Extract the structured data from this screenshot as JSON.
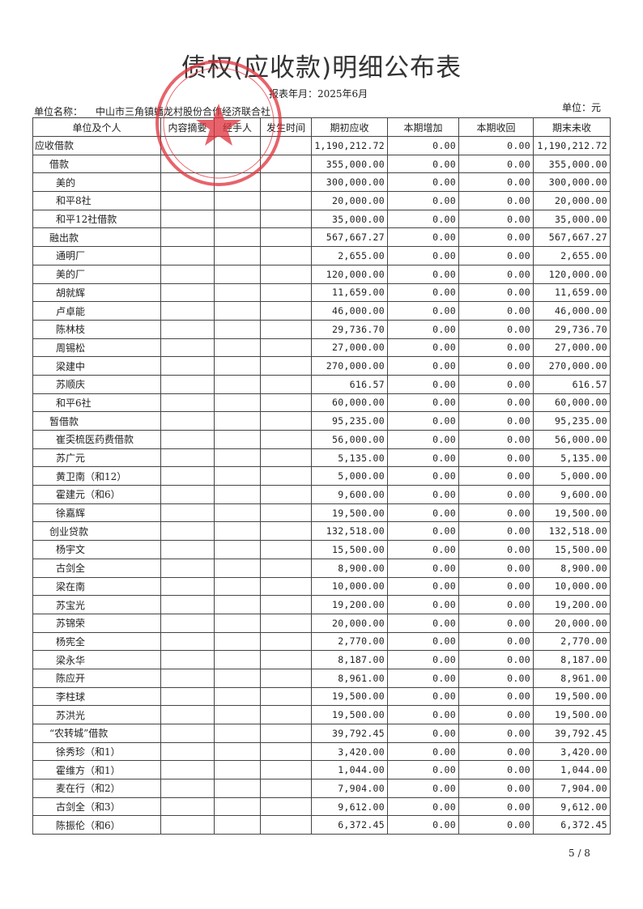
{
  "title": "债权(应收款)明细公布表",
  "period": "报表年月：2025年6月",
  "unit_label": "单位名称：",
  "unit_name": "中山市三角镇蟠龙村股份合作经济联合社",
  "currency": "单位：元",
  "stamp_text": "中山市三角镇蟠龙村股份合作经济联合社",
  "stamp_color": "#e0303a",
  "headers": [
    "单位及个人",
    "内容摘要",
    "经手人",
    "发生时间",
    "期初应收",
    "本期增加",
    "本期收回",
    "期末未收"
  ],
  "rows": [
    {
      "name": "应收借款",
      "level": 0,
      "begin": "1,190,212.72",
      "add": "0.00",
      "recv": "0.00",
      "end": "1,190,212.72"
    },
    {
      "name": "借款",
      "level": 1,
      "begin": "355,000.00",
      "add": "0.00",
      "recv": "0.00",
      "end": "355,000.00"
    },
    {
      "name": "美的",
      "level": 2,
      "begin": "300,000.00",
      "add": "0.00",
      "recv": "0.00",
      "end": "300,000.00"
    },
    {
      "name": "和平8社",
      "level": 2,
      "begin": "20,000.00",
      "add": "0.00",
      "recv": "0.00",
      "end": "20,000.00"
    },
    {
      "name": "和平12社借款",
      "level": 2,
      "begin": "35,000.00",
      "add": "0.00",
      "recv": "0.00",
      "end": "35,000.00"
    },
    {
      "name": "融出款",
      "level": 1,
      "begin": "567,667.27",
      "add": "0.00",
      "recv": "0.00",
      "end": "567,667.27"
    },
    {
      "name": "通明厂",
      "level": 2,
      "begin": "2,655.00",
      "add": "0.00",
      "recv": "0.00",
      "end": "2,655.00"
    },
    {
      "name": "美的厂",
      "level": 2,
      "begin": "120,000.00",
      "add": "0.00",
      "recv": "0.00",
      "end": "120,000.00"
    },
    {
      "name": "胡就辉",
      "level": 2,
      "begin": "11,659.00",
      "add": "0.00",
      "recv": "0.00",
      "end": "11,659.00"
    },
    {
      "name": "卢卓能",
      "level": 2,
      "begin": "46,000.00",
      "add": "0.00",
      "recv": "0.00",
      "end": "46,000.00"
    },
    {
      "name": "陈林枝",
      "level": 2,
      "begin": "29,736.70",
      "add": "0.00",
      "recv": "0.00",
      "end": "29,736.70"
    },
    {
      "name": "周锡松",
      "level": 2,
      "begin": "27,000.00",
      "add": "0.00",
      "recv": "0.00",
      "end": "27,000.00"
    },
    {
      "name": "梁建中",
      "level": 2,
      "begin": "270,000.00",
      "add": "0.00",
      "recv": "0.00",
      "end": "270,000.00"
    },
    {
      "name": "苏顺庆",
      "level": 2,
      "begin": "616.57",
      "add": "0.00",
      "recv": "0.00",
      "end": "616.57"
    },
    {
      "name": "和平6社",
      "level": 2,
      "begin": "60,000.00",
      "add": "0.00",
      "recv": "0.00",
      "end": "60,000.00"
    },
    {
      "name": "暂借款",
      "level": 1,
      "begin": "95,235.00",
      "add": "0.00",
      "recv": "0.00",
      "end": "95,235.00"
    },
    {
      "name": "崔奀梳医药费借款",
      "level": 2,
      "begin": "56,000.00",
      "add": "0.00",
      "recv": "0.00",
      "end": "56,000.00"
    },
    {
      "name": "苏广元",
      "level": 2,
      "begin": "5,135.00",
      "add": "0.00",
      "recv": "0.00",
      "end": "5,135.00"
    },
    {
      "name": "黄卫南（和12）",
      "level": 2,
      "begin": "5,000.00",
      "add": "0.00",
      "recv": "0.00",
      "end": "5,000.00"
    },
    {
      "name": "霍建元（和6）",
      "level": 2,
      "begin": "9,600.00",
      "add": "0.00",
      "recv": "0.00",
      "end": "9,600.00"
    },
    {
      "name": "徐嘉辉",
      "level": 2,
      "begin": "19,500.00",
      "add": "0.00",
      "recv": "0.00",
      "end": "19,500.00"
    },
    {
      "name": "创业贷款",
      "level": 1,
      "begin": "132,518.00",
      "add": "0.00",
      "recv": "0.00",
      "end": "132,518.00"
    },
    {
      "name": "杨宇文",
      "level": 2,
      "begin": "15,500.00",
      "add": "0.00",
      "recv": "0.00",
      "end": "15,500.00"
    },
    {
      "name": "古剑全",
      "level": 2,
      "begin": "8,900.00",
      "add": "0.00",
      "recv": "0.00",
      "end": "8,900.00"
    },
    {
      "name": "梁在南",
      "level": 2,
      "begin": "10,000.00",
      "add": "0.00",
      "recv": "0.00",
      "end": "10,000.00"
    },
    {
      "name": "苏宝光",
      "level": 2,
      "begin": "19,200.00",
      "add": "0.00",
      "recv": "0.00",
      "end": "19,200.00"
    },
    {
      "name": "苏锦荣",
      "level": 2,
      "begin": "20,000.00",
      "add": "0.00",
      "recv": "0.00",
      "end": "20,000.00"
    },
    {
      "name": "杨宪全",
      "level": 2,
      "begin": "2,770.00",
      "add": "0.00",
      "recv": "0.00",
      "end": "2,770.00"
    },
    {
      "name": "梁永华",
      "level": 2,
      "begin": "8,187.00",
      "add": "0.00",
      "recv": "0.00",
      "end": "8,187.00"
    },
    {
      "name": "陈应开",
      "level": 2,
      "begin": "8,961.00",
      "add": "0.00",
      "recv": "0.00",
      "end": "8,961.00"
    },
    {
      "name": "李柱球",
      "level": 2,
      "begin": "19,500.00",
      "add": "0.00",
      "recv": "0.00",
      "end": "19,500.00"
    },
    {
      "name": "苏洪光",
      "level": 2,
      "begin": "19,500.00",
      "add": "0.00",
      "recv": "0.00",
      "end": "19,500.00"
    },
    {
      "name": "“农转城”借款",
      "level": 1,
      "begin": "39,792.45",
      "add": "0.00",
      "recv": "0.00",
      "end": "39,792.45"
    },
    {
      "name": "徐秀珍（和1）",
      "level": 2,
      "begin": "3,420.00",
      "add": "0.00",
      "recv": "0.00",
      "end": "3,420.00"
    },
    {
      "name": "霍维方（和1）",
      "level": 2,
      "begin": "1,044.00",
      "add": "0.00",
      "recv": "0.00",
      "end": "1,044.00"
    },
    {
      "name": "麦在行（和2）",
      "level": 2,
      "begin": "7,904.00",
      "add": "0.00",
      "recv": "0.00",
      "end": "7,904.00"
    },
    {
      "name": "古剑全（和3）",
      "level": 2,
      "begin": "9,612.00",
      "add": "0.00",
      "recv": "0.00",
      "end": "9,612.00"
    },
    {
      "name": "陈振伦（和6）",
      "level": 2,
      "begin": "6,372.45",
      "add": "0.00",
      "recv": "0.00",
      "end": "6,372.45"
    }
  ],
  "page": "5 / 8"
}
